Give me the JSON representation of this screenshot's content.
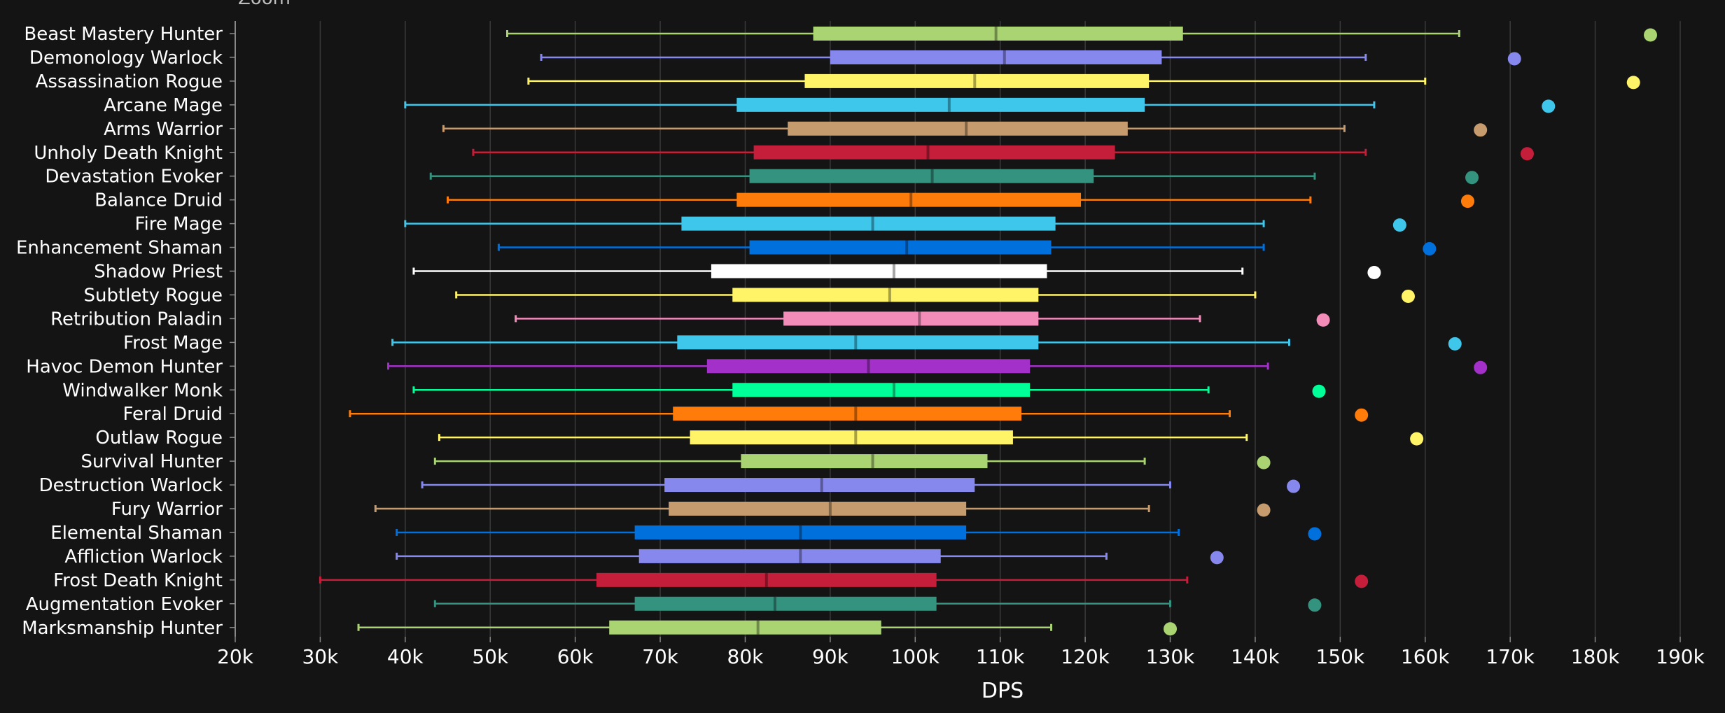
{
  "zoom_label": "Zoom",
  "chart_data": {
    "type": "box",
    "title": "",
    "xlabel": "DPS",
    "ylabel": "",
    "xlim": [
      20000,
      190000
    ],
    "xticks": [
      20000,
      30000,
      40000,
      50000,
      60000,
      70000,
      80000,
      90000,
      100000,
      110000,
      120000,
      130000,
      140000,
      150000,
      160000,
      170000,
      180000,
      190000
    ],
    "xtick_labels": [
      "20k",
      "30k",
      "40k",
      "50k",
      "60k",
      "70k",
      "80k",
      "90k",
      "100k",
      "110k",
      "120k",
      "130k",
      "140k",
      "150k",
      "160k",
      "170k",
      "180k",
      "190k"
    ],
    "grid": "vertical",
    "series": [
      {
        "name": "Beast Mastery Hunter",
        "color": "#aad372",
        "min": 52000,
        "q1": 88000,
        "median": 109500,
        "q3": 131500,
        "max": 164000,
        "outlier": 186500
      },
      {
        "name": "Demonology Warlock",
        "color": "#8788ee",
        "min": 56000,
        "q1": 90000,
        "median": 110500,
        "q3": 129000,
        "max": 153000,
        "outlier": 170500
      },
      {
        "name": "Assassination Rogue",
        "color": "#fff468",
        "min": 54500,
        "q1": 87000,
        "median": 107000,
        "q3": 127500,
        "max": 160000,
        "outlier": 184500
      },
      {
        "name": "Arcane Mage",
        "color": "#3fc7eb",
        "min": 40000,
        "q1": 79000,
        "median": 104000,
        "q3": 127000,
        "max": 154000,
        "outlier": 174500
      },
      {
        "name": "Arms Warrior",
        "color": "#c69b6d",
        "min": 44500,
        "q1": 85000,
        "median": 106000,
        "q3": 125000,
        "max": 150500,
        "outlier": 166500
      },
      {
        "name": "Unholy Death Knight",
        "color": "#c41e3a",
        "min": 48000,
        "q1": 81000,
        "median": 101500,
        "q3": 123500,
        "max": 153000,
        "outlier": 172000
      },
      {
        "name": "Devastation Evoker",
        "color": "#33937f",
        "min": 43000,
        "q1": 80500,
        "median": 102000,
        "q3": 121000,
        "max": 147000,
        "outlier": 165500
      },
      {
        "name": "Balance Druid",
        "color": "#ff7c0a",
        "min": 45000,
        "q1": 79000,
        "median": 99500,
        "q3": 119500,
        "max": 146500,
        "outlier": 165000
      },
      {
        "name": "Fire Mage",
        "color": "#3fc7eb",
        "min": 40000,
        "q1": 72500,
        "median": 95000,
        "q3": 116500,
        "max": 141000,
        "outlier": 157000
      },
      {
        "name": "Enhancement Shaman",
        "color": "#0070dd",
        "min": 51000,
        "q1": 80500,
        "median": 99000,
        "q3": 116000,
        "max": 141000,
        "outlier": 160500
      },
      {
        "name": "Shadow Priest",
        "color": "#ffffff",
        "min": 41000,
        "q1": 76000,
        "median": 97500,
        "q3": 115500,
        "max": 138500,
        "outlier": 154000
      },
      {
        "name": "Subtlety Rogue",
        "color": "#fff468",
        "min": 46000,
        "q1": 78500,
        "median": 97000,
        "q3": 114500,
        "max": 140000,
        "outlier": 158000
      },
      {
        "name": "Retribution Paladin",
        "color": "#f48cba",
        "min": 53000,
        "q1": 84500,
        "median": 100500,
        "q3": 114500,
        "max": 133500,
        "outlier": 148000
      },
      {
        "name": "Frost Mage",
        "color": "#3fc7eb",
        "min": 38500,
        "q1": 72000,
        "median": 93000,
        "q3": 114500,
        "max": 144000,
        "outlier": 163500
      },
      {
        "name": "Havoc Demon Hunter",
        "color": "#a330c9",
        "min": 38000,
        "q1": 75500,
        "median": 94500,
        "q3": 113500,
        "max": 141500,
        "outlier": 166500
      },
      {
        "name": "Windwalker Monk",
        "color": "#00ff98",
        "min": 41000,
        "q1": 78500,
        "median": 97500,
        "q3": 113500,
        "max": 134500,
        "outlier": 147500
      },
      {
        "name": "Feral Druid",
        "color": "#ff7c0a",
        "min": 33500,
        "q1": 71500,
        "median": 93000,
        "q3": 112500,
        "max": 137000,
        "outlier": 152500
      },
      {
        "name": "Outlaw Rogue",
        "color": "#fff468",
        "min": 44000,
        "q1": 73500,
        "median": 93000,
        "q3": 111500,
        "max": 139000,
        "outlier": 159000
      },
      {
        "name": "Survival Hunter",
        "color": "#aad372",
        "min": 43500,
        "q1": 79500,
        "median": 95000,
        "q3": 108500,
        "max": 127000,
        "outlier": 141000
      },
      {
        "name": "Destruction Warlock",
        "color": "#8788ee",
        "min": 42000,
        "q1": 70500,
        "median": 89000,
        "q3": 107000,
        "max": 130000,
        "outlier": 144500
      },
      {
        "name": "Fury Warrior",
        "color": "#c69b6d",
        "min": 36500,
        "q1": 71000,
        "median": 90000,
        "q3": 106000,
        "max": 127500,
        "outlier": 141000
      },
      {
        "name": "Elemental Shaman",
        "color": "#0070dd",
        "min": 39000,
        "q1": 67000,
        "median": 86500,
        "q3": 106000,
        "max": 131000,
        "outlier": 147000
      },
      {
        "name": "Affliction Warlock",
        "color": "#8788ee",
        "min": 39000,
        "q1": 67500,
        "median": 86500,
        "q3": 103000,
        "max": 122500,
        "outlier": 135500
      },
      {
        "name": "Frost Death Knight",
        "color": "#c41e3a",
        "min": 30000,
        "q1": 62500,
        "median": 82500,
        "q3": 102500,
        "max": 132000,
        "outlier": 152500
      },
      {
        "name": "Augmentation Evoker",
        "color": "#33937f",
        "min": 43500,
        "q1": 67000,
        "median": 83500,
        "q3": 102500,
        "max": 130000,
        "outlier": 147000
      },
      {
        "name": "Marksmanship Hunter",
        "color": "#aad372",
        "min": 34500,
        "q1": 64000,
        "median": 81500,
        "q3": 96000,
        "max": 116000,
        "outlier": 130000
      }
    ]
  }
}
